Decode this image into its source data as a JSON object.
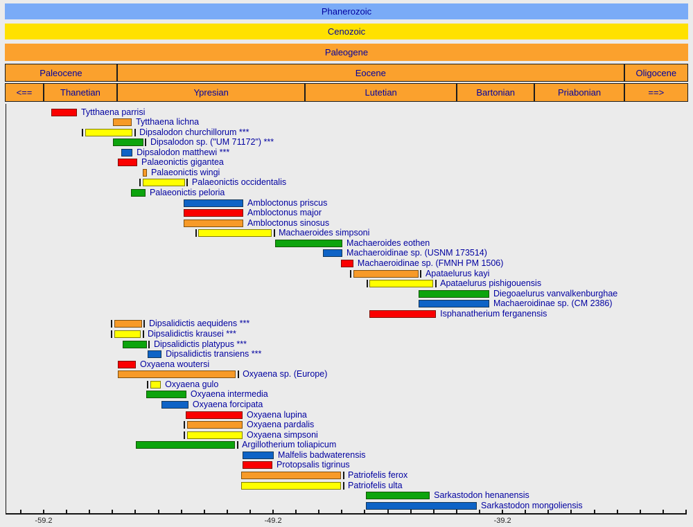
{
  "palette": {
    "red": "#FA0000",
    "orange": "#F79A28",
    "yellow": "#FFFF00",
    "green": "#0DA40D",
    "blue": "#0E63C6"
  },
  "text_colors": {
    "label_navy": "#0000A0",
    "axis": "#232323"
  },
  "header": {
    "cell_bg": "#FBA12D",
    "bands": [
      {
        "id": "phanerozoic",
        "label": "Phanerozoic",
        "bg": "#7AABF7"
      },
      {
        "id": "cenozoic",
        "label": "Cenozoic",
        "bg": "#FFE100"
      },
      {
        "id": "paleogene",
        "label": "Paleogene",
        "bg": "#FBA12D"
      }
    ],
    "epochs": [
      {
        "label": "Paleocene",
        "start": -60.89,
        "end": -56.0
      },
      {
        "label": "Eocene",
        "start": -56.0,
        "end": -33.9
      },
      {
        "label": "Oligocene",
        "start": -33.9,
        "end": -31.11
      }
    ],
    "stages": [
      {
        "label": "<==",
        "start": -60.89,
        "end": -59.2,
        "arrow": true
      },
      {
        "label": "Thanetian",
        "start": -59.2,
        "end": -56.0
      },
      {
        "label": "Ypresian",
        "start": -56.0,
        "end": -47.8
      },
      {
        "label": "Lutetian",
        "start": -47.8,
        "end": -41.2
      },
      {
        "label": "Bartonian",
        "start": -41.2,
        "end": -37.8
      },
      {
        "label": "Priabonian",
        "start": -37.8,
        "end": -33.9
      },
      {
        "label": "==>",
        "start": -33.9,
        "end": -31.11,
        "arrow": true
      }
    ]
  },
  "chart_data": {
    "type": "bar",
    "variant": "taxon-temporal-range-chart",
    "axis": {
      "min": -60.89,
      "max": -31.11,
      "unit": "Ma",
      "tick_start": -60.2,
      "tick_step": 1,
      "tick_count": 30,
      "labeled_ticks": [
        {
          "text": "-59.2",
          "value": -59.2
        },
        {
          "text": "-49.2",
          "value": -49.2
        },
        {
          "text": "-39.2",
          "value": -39.2
        }
      ]
    },
    "taxa": [
      {
        "name": "Tytthaena parrisi",
        "color": "red",
        "start": -58.87,
        "end": -57.75,
        "left_tick": false,
        "right_tick": false
      },
      {
        "name": "Tytthaena lichna",
        "color": "orange",
        "start": -56.18,
        "end": -55.36,
        "left_tick": false,
        "right_tick": false
      },
      {
        "name": "Dipsalodon churchillorum ***",
        "color": "yellow",
        "start": -57.39,
        "end": -55.33,
        "left_tick": true,
        "right_tick": true
      },
      {
        "name": "Dipsalodon sp. (\"UM 71172\") ***",
        "color": "green",
        "start": -56.18,
        "end": -54.85,
        "left_tick": false,
        "right_tick": true
      },
      {
        "name": "Dipsalodon matthewi ***",
        "color": "blue",
        "start": -55.82,
        "end": -55.33,
        "left_tick": false,
        "right_tick": false
      },
      {
        "name": "Palaeonictis gigantea",
        "color": "red",
        "start": -55.97,
        "end": -55.12,
        "left_tick": false,
        "right_tick": false
      },
      {
        "name": "Palaeonictis wingi",
        "color": "orange",
        "start": -54.88,
        "end": -54.7,
        "left_tick": false,
        "right_tick": false
      },
      {
        "name": "Palaeonictis occidentalis",
        "color": "yellow",
        "start": -54.88,
        "end": -53.04,
        "left_tick": true,
        "right_tick": true
      },
      {
        "name": "Palaeonictis peloria",
        "color": "green",
        "start": -55.39,
        "end": -54.76,
        "left_tick": false,
        "right_tick": false
      },
      {
        "name": "Ambloctonus priscus",
        "color": "blue",
        "start": -53.1,
        "end": -50.5,
        "left_tick": false,
        "right_tick": false
      },
      {
        "name": "Ambloctonus major",
        "color": "red",
        "start": -53.1,
        "end": -50.5,
        "left_tick": false,
        "right_tick": false
      },
      {
        "name": "Ambloctonus sinosus",
        "color": "orange",
        "start": -53.1,
        "end": -50.5,
        "left_tick": false,
        "right_tick": false
      },
      {
        "name": "Machaeroides simpsoni",
        "color": "yellow",
        "start": -52.46,
        "end": -49.26,
        "left_tick": true,
        "right_tick": true
      },
      {
        "name": "Machaeroides eothen",
        "color": "green",
        "start": -49.11,
        "end": -46.18,
        "left_tick": false,
        "right_tick": false
      },
      {
        "name": "Machaeroidinae sp. (USNM 173514)",
        "color": "blue",
        "start": -47.03,
        "end": -46.18,
        "left_tick": false,
        "right_tick": false
      },
      {
        "name": "Machaeroidinae sp. (FMNH PM 1506)",
        "color": "red",
        "start": -46.24,
        "end": -45.7,
        "left_tick": false,
        "right_tick": false
      },
      {
        "name": "Apataelurus kayi",
        "color": "orange",
        "start": -45.7,
        "end": -42.86,
        "left_tick": true,
        "right_tick": true
      },
      {
        "name": "Apataelurus pishigouensis",
        "color": "yellow",
        "start": -45.0,
        "end": -42.22,
        "left_tick": true,
        "right_tick": true
      },
      {
        "name": "Diegoaelurus vanvalkenburghae",
        "color": "green",
        "start": -42.86,
        "end": -39.78,
        "left_tick": false,
        "right_tick": false
      },
      {
        "name": "Machaeroidinae sp. (CM 2386)",
        "color": "blue",
        "start": -42.86,
        "end": -39.78,
        "left_tick": false,
        "right_tick": false
      },
      {
        "name": "Isphanatherium ferganensis",
        "color": "red",
        "start": -45.0,
        "end": -42.1,
        "left_tick": false,
        "right_tick": false
      },
      {
        "name": "Dipsalidictis aequidens ***",
        "color": "orange",
        "start": -56.12,
        "end": -54.91,
        "left_tick": true,
        "right_tick": true
      },
      {
        "name": "Dipsalidictis krausei ***",
        "color": "yellow",
        "start": -56.12,
        "end": -54.97,
        "left_tick": true,
        "right_tick": true
      },
      {
        "name": "Dipsalidictis platypus ***",
        "color": "green",
        "start": -55.76,
        "end": -54.7,
        "left_tick": false,
        "right_tick": true
      },
      {
        "name": "Dipsalidictis transiens ***",
        "color": "blue",
        "start": -54.67,
        "end": -54.06,
        "left_tick": false,
        "right_tick": false
      },
      {
        "name": "Oxyaena woutersi",
        "color": "red",
        "start": -55.97,
        "end": -55.18,
        "left_tick": false,
        "right_tick": false
      },
      {
        "name": "Oxyaena sp. (Europe)",
        "color": "orange",
        "start": -55.97,
        "end": -50.83,
        "left_tick": false,
        "right_tick": true
      },
      {
        "name": "Oxyaena gulo",
        "color": "yellow",
        "start": -54.55,
        "end": -54.09,
        "left_tick": true,
        "right_tick": false
      },
      {
        "name": "Oxyaena intermedia",
        "color": "green",
        "start": -54.73,
        "end": -52.98,
        "left_tick": false,
        "right_tick": false
      },
      {
        "name": "Oxyaena forcipata",
        "color": "blue",
        "start": -54.06,
        "end": -52.89,
        "left_tick": false,
        "right_tick": false
      },
      {
        "name": "Oxyaena lupina",
        "color": "red",
        "start": -53.01,
        "end": -50.53,
        "left_tick": false,
        "right_tick": false
      },
      {
        "name": "Oxyaena pardalis",
        "color": "orange",
        "start": -52.95,
        "end": -50.53,
        "left_tick": true,
        "right_tick": false
      },
      {
        "name": "Oxyaena simpsoni",
        "color": "yellow",
        "start": -52.95,
        "end": -50.53,
        "left_tick": true,
        "right_tick": false
      },
      {
        "name": "Argillotherium toliapicum",
        "color": "green",
        "start": -55.18,
        "end": -50.86,
        "left_tick": false,
        "right_tick": true
      },
      {
        "name": "Malfelis badwaterensis",
        "color": "blue",
        "start": -50.53,
        "end": -49.17,
        "left_tick": false,
        "right_tick": false
      },
      {
        "name": "Protopsalis tigrinus",
        "color": "red",
        "start": -50.53,
        "end": -49.23,
        "left_tick": false,
        "right_tick": false
      },
      {
        "name": "Patriofelis ferox",
        "color": "orange",
        "start": -50.59,
        "end": -46.24,
        "left_tick": false,
        "right_tick": true
      },
      {
        "name": "Patriofelis ulta",
        "color": "yellow",
        "start": -50.59,
        "end": -46.24,
        "left_tick": false,
        "right_tick": true
      },
      {
        "name": "Sarkastodon henanensis",
        "color": "green",
        "start": -45.15,
        "end": -42.37,
        "left_tick": false,
        "right_tick": false
      },
      {
        "name": "Sarkastodon mongoliensis",
        "color": "blue",
        "start": -45.15,
        "end": -40.32,
        "left_tick": false,
        "right_tick": false
      }
    ]
  }
}
